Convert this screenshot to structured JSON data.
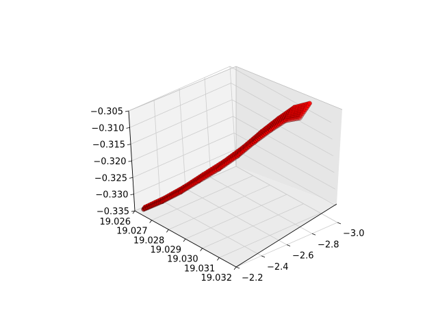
{
  "chart_data": {
    "type": "scatter",
    "projection": "3d",
    "title": "",
    "xlabel": "",
    "ylabel": "",
    "zlabel": "",
    "x_ticks": [
      "19.026",
      "19.027",
      "19.028",
      "19.029",
      "19.030",
      "19.031",
      "19.032"
    ],
    "y_ticks": [
      "−3.0",
      "−2.8",
      "−2.6",
      "−2.4",
      "−2.2"
    ],
    "z_ticks": [
      "−0.305",
      "−0.310",
      "−0.315",
      "−0.320",
      "−0.325",
      "−0.330",
      "−0.335"
    ],
    "xlim": [
      19.026,
      19.032
    ],
    "ylim": [
      -3.0,
      -2.2
    ],
    "zlim": [
      -0.335,
      -0.305
    ],
    "grid": true,
    "marker_color": "#ff0000",
    "marker_edge_color": "#000000",
    "series": [
      {
        "points_description_skip": true,
        "trajectory": [
          {
            "x": 19.0262,
            "y": -2.25,
            "z": -0.3345
          },
          {
            "x": 19.0266,
            "y": -2.35,
            "z": -0.3325
          },
          {
            "x": 19.027,
            "y": -2.45,
            "z": -0.33
          },
          {
            "x": 19.0274,
            "y": -2.55,
            "z": -0.327
          },
          {
            "x": 19.0279,
            "y": -2.65,
            "z": -0.3235
          },
          {
            "x": 19.0284,
            "y": -2.74,
            "z": -0.3195
          },
          {
            "x": 19.0289,
            "y": -2.82,
            "z": -0.315
          },
          {
            "x": 19.0294,
            "y": -2.89,
            "z": -0.311
          },
          {
            "x": 19.0299,
            "y": -2.95,
            "z": -0.3075
          },
          {
            "x": 19.0305,
            "y": -2.99,
            "z": -0.3055
          }
        ]
      }
    ]
  }
}
